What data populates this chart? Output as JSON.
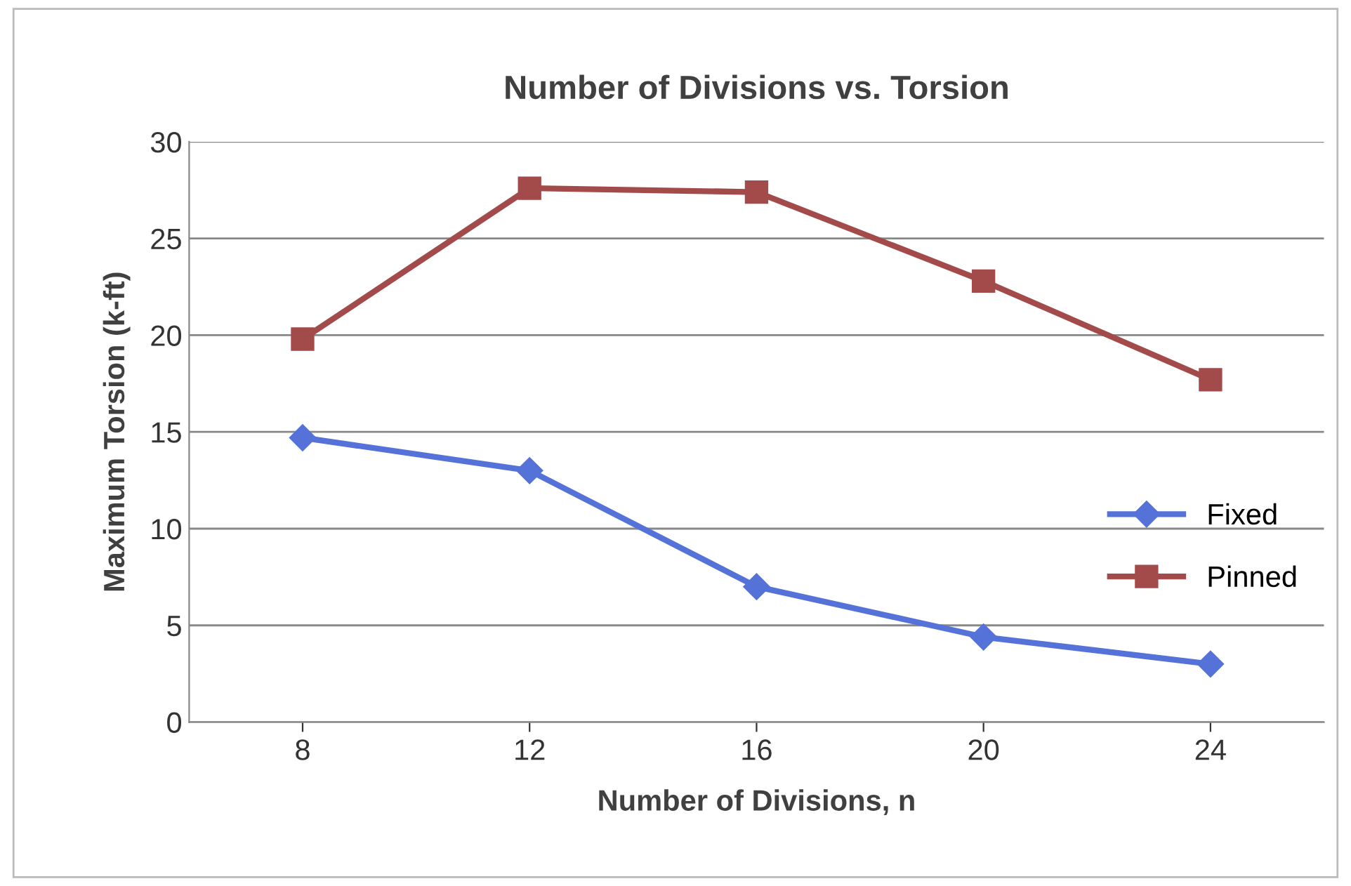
{
  "chart_data": {
    "type": "line",
    "title": "Number of Divisions vs. Torsion",
    "xlabel": "Number of Divisions, n",
    "ylabel": "Maximum Torsion (k-ft)",
    "categories": [
      "8",
      "12",
      "16",
      "20",
      "24"
    ],
    "series": [
      {
        "name": "Fixed",
        "color": "#5472d8",
        "marker": "diamond",
        "values": [
          14.7,
          13.0,
          7.0,
          4.4,
          3.0
        ]
      },
      {
        "name": "Pinned",
        "color": "#a34a4a",
        "marker": "square",
        "values": [
          19.8,
          27.6,
          27.4,
          22.8,
          17.7
        ]
      }
    ],
    "ylim": [
      0,
      30
    ],
    "yticks": [
      0,
      5,
      10,
      15,
      20,
      25,
      30
    ],
    "grid": "y",
    "legend": "right",
    "line_style": "solid"
  }
}
